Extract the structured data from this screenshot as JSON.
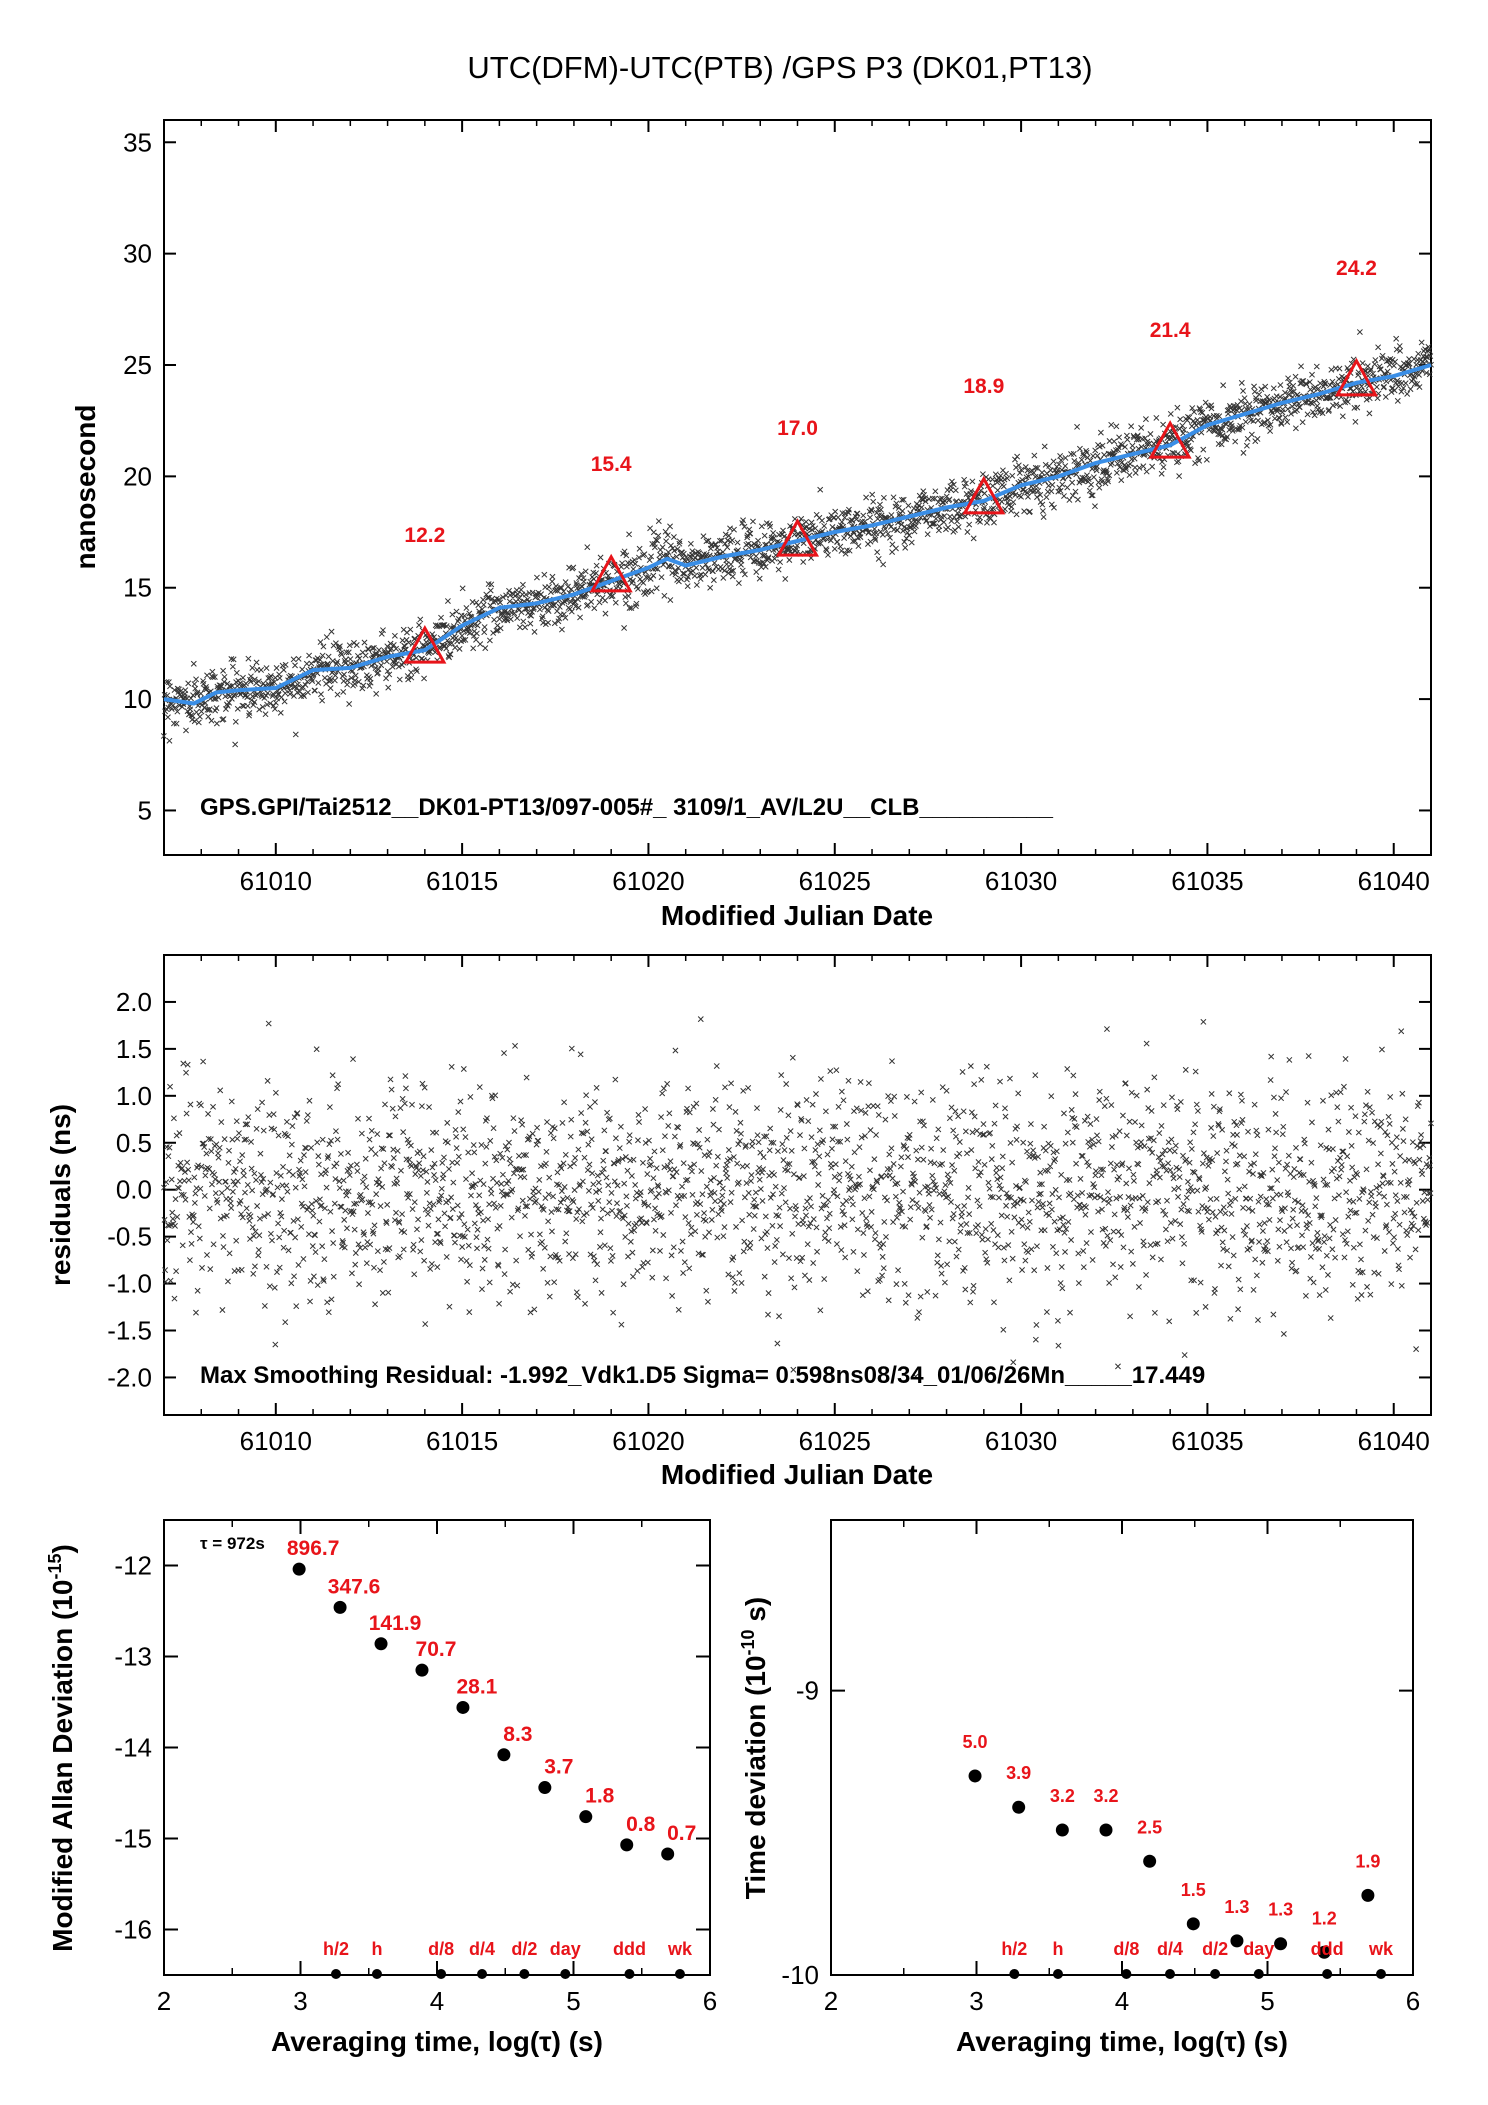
{
  "title": "UTC(DFM)-UTC(PTB)  /GPS  P3  (DK01,PT13)",
  "colors": {
    "smooth_line": "#3a8ee6",
    "red": "#e8141a",
    "scatter": "#333333"
  },
  "chart_data": [
    {
      "type": "scatter",
      "panel": "top",
      "xlabel": "Modified Julian Date",
      "ylabel": "nanosecond",
      "xlim": [
        61007,
        61041
      ],
      "ylim": [
        3,
        36
      ],
      "xticks": [
        61010,
        61015,
        61020,
        61025,
        61030,
        61035,
        61040
      ],
      "yticks": [
        5,
        10,
        15,
        20,
        25,
        30,
        35
      ],
      "smoothed_series": {
        "x": [
          61007,
          61007.8,
          61008.4,
          61009,
          61010,
          61011,
          61012,
          61013,
          61014,
          61015,
          61016,
          61017,
          61018,
          61019,
          61020,
          61020.5,
          61021,
          61022,
          61023,
          61024,
          61025,
          61026,
          61027,
          61028,
          61029,
          61030,
          61031,
          61032,
          61033,
          61034,
          61035,
          61036,
          61037,
          61038,
          61039,
          61040,
          61041
        ],
        "y": [
          10.0,
          9.8,
          10.3,
          10.4,
          10.5,
          11.3,
          11.4,
          11.9,
          12.2,
          13.3,
          14.1,
          14.3,
          14.7,
          15.3,
          15.9,
          16.3,
          16.0,
          16.4,
          16.7,
          17.1,
          17.5,
          17.8,
          18.2,
          18.6,
          18.9,
          19.6,
          20.0,
          20.6,
          21.0,
          21.4,
          22.3,
          22.8,
          23.3,
          23.7,
          24.2,
          24.5,
          25.0
        ]
      },
      "markers": [
        {
          "x": 61014,
          "y": 12.2,
          "label": "12.2"
        },
        {
          "x": 61019,
          "y": 15.4,
          "label": "15.4"
        },
        {
          "x": 61024,
          "y": 17.0,
          "label": "17.0"
        },
        {
          "x": 61029,
          "y": 18.9,
          "label": "18.9"
        },
        {
          "x": 61034,
          "y": 21.4,
          "label": "21.4"
        },
        {
          "x": 61039,
          "y": 24.2,
          "label": "24.2"
        }
      ],
      "annotation": "GPS.GPI/Tai2512__DK01-PT13/097-005#_  3109/1_AV/L2U__CLB__________"
    },
    {
      "type": "scatter",
      "panel": "residuals",
      "xlabel": "Modified Julian Date",
      "ylabel": "residuals (ns)",
      "xlim": [
        61007,
        61041
      ],
      "ylim": [
        -2.4,
        2.5
      ],
      "xticks": [
        61010,
        61015,
        61020,
        61025,
        61030,
        61035,
        61040
      ],
      "yticks": [
        2.0,
        1.5,
        1.0,
        0.5,
        0.0,
        -0.5,
        -1.0,
        -1.5,
        -2.0
      ],
      "ytick_labels": [
        "2.0",
        "1.5",
        "1.0",
        "0.5",
        "0.0",
        "-0.5",
        "-1.0",
        "-1.5",
        "-2.0"
      ],
      "sigma": 0.598,
      "annotation": "Max Smoothing Residual: -1.992_Vdk1.D5  Sigma= 0.598ns08/34_01/06/26Mn_____17.449"
    },
    {
      "type": "scatter",
      "panel": "mdev",
      "xlabel": "Averaging time, log(τ) (s)",
      "ylabel_main": "Modified Allan Deviation (10",
      "ylabel_sup": "-15",
      "ylabel_end": ")",
      "xlim": [
        2,
        6
      ],
      "ylim": [
        -16.5,
        -11.5
      ],
      "xticks": [
        2,
        3,
        4,
        5,
        6
      ],
      "yticks": [
        -12,
        -13,
        -14,
        -15,
        -16
      ],
      "tau_note": "τ = 972s",
      "points": [
        {
          "x": 2.99,
          "y": -12.04,
          "label": "896.7"
        },
        {
          "x": 3.29,
          "y": -12.46,
          "label": "347.6"
        },
        {
          "x": 3.59,
          "y": -12.86,
          "label": "141.9"
        },
        {
          "x": 3.89,
          "y": -13.15,
          "label": "70.7"
        },
        {
          "x": 4.19,
          "y": -13.56,
          "label": "28.1"
        },
        {
          "x": 4.49,
          "y": -14.08,
          "label": "8.3"
        },
        {
          "x": 4.79,
          "y": -14.44,
          "label": "3.7"
        },
        {
          "x": 5.09,
          "y": -14.76,
          "label": "1.8"
        },
        {
          "x": 5.39,
          "y": -15.07,
          "label": "0.8"
        },
        {
          "x": 5.69,
          "y": -15.17,
          "label": "0.7"
        }
      ],
      "ref_ticks": [
        {
          "x": 3.26,
          "label": "h/2"
        },
        {
          "x": 3.56,
          "label": "h"
        },
        {
          "x": 4.03,
          "label": "d/8"
        },
        {
          "x": 4.33,
          "label": "d/4"
        },
        {
          "x": 4.64,
          "label": "d/2"
        },
        {
          "x": 4.94,
          "label": "day"
        },
        {
          "x": 5.41,
          "label": "ddd"
        },
        {
          "x": 5.78,
          "label": "wk"
        }
      ]
    },
    {
      "type": "scatter",
      "panel": "tdev",
      "xlabel": "Averaging time, log(τ) (s)",
      "ylabel_main": "Time deviation (10",
      "ylabel_sup": "-10",
      "ylabel_end": " s)",
      "xlim": [
        2,
        6
      ],
      "ylim": [
        -10,
        -8.4
      ],
      "xticks": [
        2,
        3,
        4,
        5,
        6
      ],
      "yticks": [
        -9,
        -10
      ],
      "points": [
        {
          "x": 2.99,
          "y": -9.3,
          "label": "5.0"
        },
        {
          "x": 3.29,
          "y": -9.41,
          "label": "3.9"
        },
        {
          "x": 3.59,
          "y": -9.49,
          "label": "3.2"
        },
        {
          "x": 3.89,
          "y": -9.49,
          "label": "3.2"
        },
        {
          "x": 4.19,
          "y": -9.6,
          "label": "2.5"
        },
        {
          "x": 4.49,
          "y": -9.82,
          "label": "1.5"
        },
        {
          "x": 4.79,
          "y": -9.88,
          "label": "1.3"
        },
        {
          "x": 5.09,
          "y": -9.89,
          "label": "1.3"
        },
        {
          "x": 5.39,
          "y": -9.92,
          "label": "1.2"
        },
        {
          "x": 5.69,
          "y": -9.72,
          "label": "1.9"
        }
      ],
      "ref_ticks": [
        {
          "x": 3.26,
          "label": "h/2"
        },
        {
          "x": 3.56,
          "label": "h"
        },
        {
          "x": 4.03,
          "label": "d/8"
        },
        {
          "x": 4.33,
          "label": "d/4"
        },
        {
          "x": 4.64,
          "label": "d/2"
        },
        {
          "x": 4.94,
          "label": "day"
        },
        {
          "x": 5.41,
          "label": "ddd"
        },
        {
          "x": 5.78,
          "label": "wk"
        }
      ]
    }
  ]
}
